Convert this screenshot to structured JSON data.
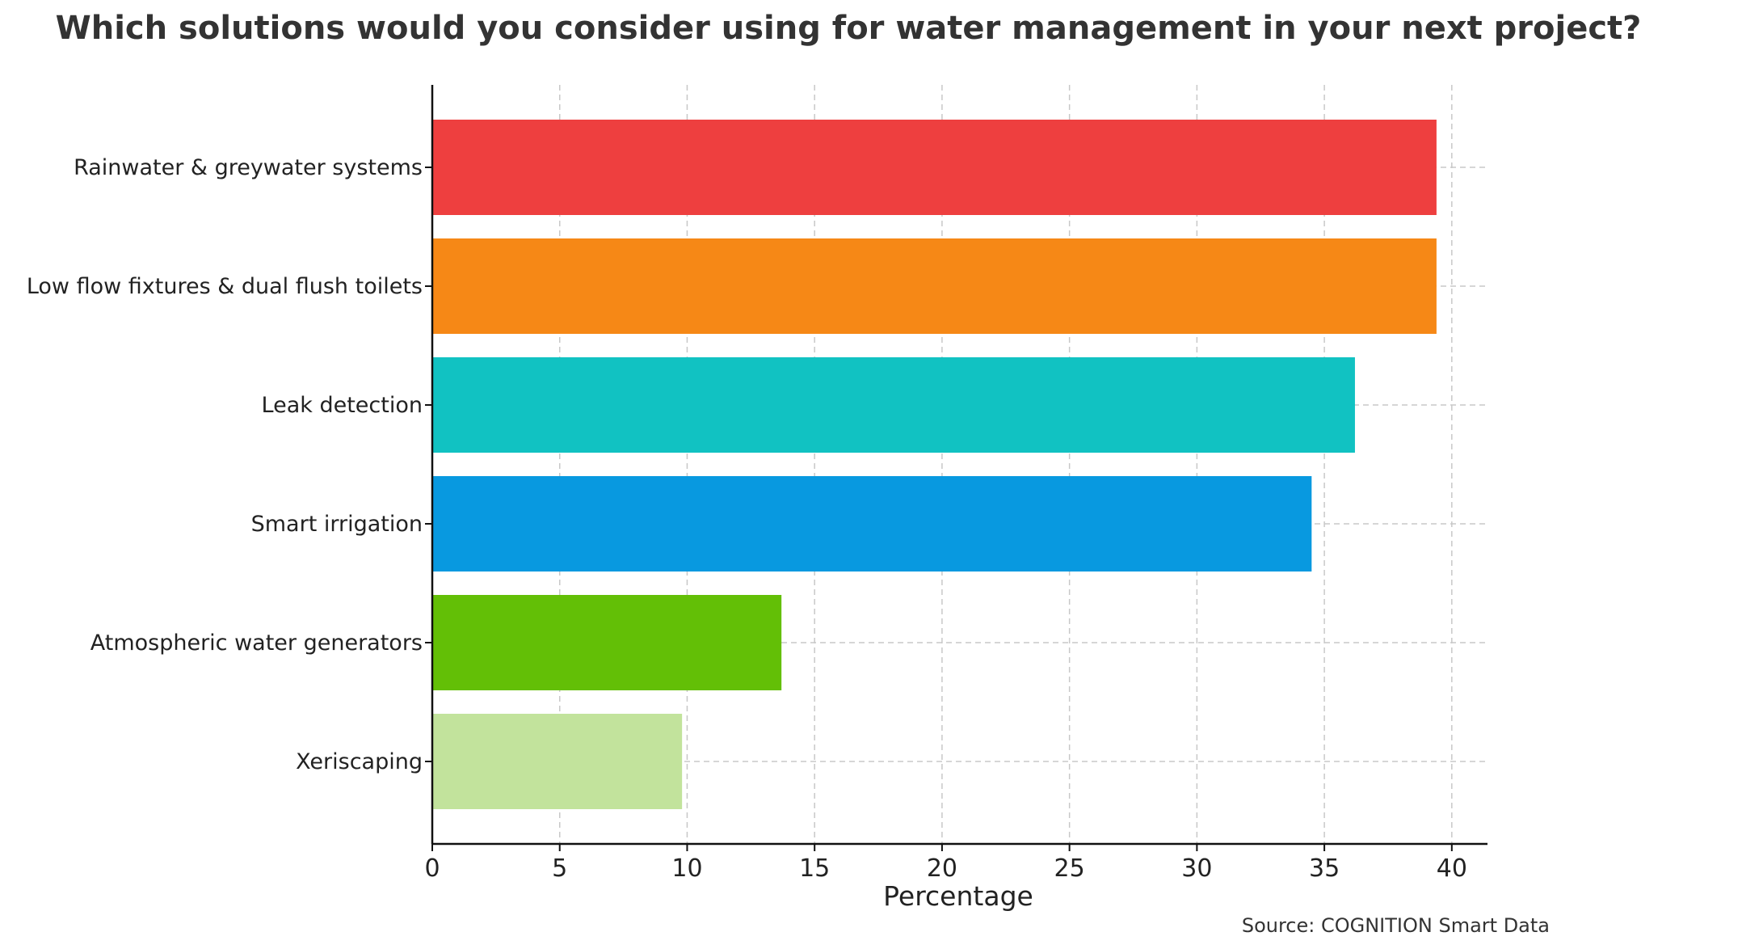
{
  "chart_data": {
    "type": "bar",
    "orientation": "horizontal",
    "title": "Which solutions would you consider using for water management in your next project?",
    "xlabel": "Percentage",
    "ylabel": "",
    "categories": [
      "Rainwater & greywater systems",
      "Low flow fixtures & dual flush toilets",
      "Leak detection",
      "Smart irrigation",
      "Atmospheric water generators",
      "Xeriscaping"
    ],
    "values": [
      39.4,
      39.4,
      36.2,
      34.5,
      13.7,
      9.8
    ],
    "colors": [
      "#ee3f3f",
      "#f68816",
      "#11c2c2",
      "#0899e0",
      "#63bf06",
      "#c2e39c"
    ],
    "xlim": [
      0,
      41.4
    ],
    "xticks": [
      0,
      5,
      10,
      15,
      20,
      25,
      30,
      35,
      40
    ],
    "grid": true,
    "source": "Source: COGNITION Smart Data"
  }
}
